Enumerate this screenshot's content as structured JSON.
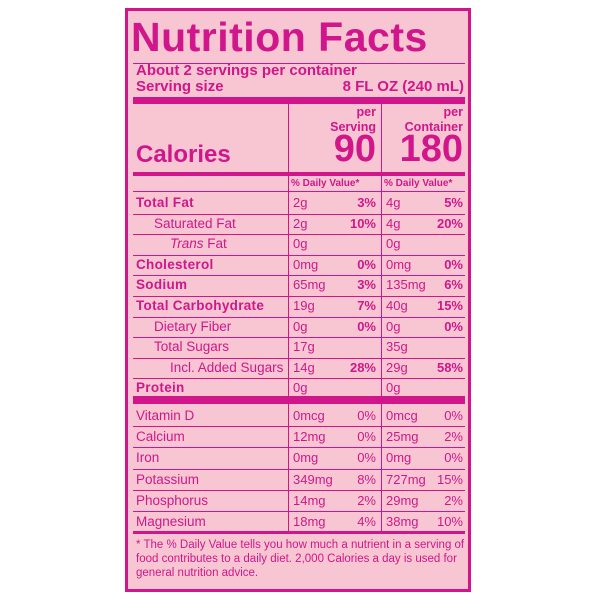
{
  "title": "Nutrition Facts",
  "servings_per_container": "About 2 servings per container",
  "serving_size_label": "Serving size",
  "serving_size_value": "8 FL OZ (240 mL)",
  "per_serving_header": [
    "per",
    "Serving"
  ],
  "per_container_header": [
    "per",
    "Container"
  ],
  "calories_label": "Calories",
  "calories_serving": "90",
  "calories_container": "180",
  "dv_header": "% Daily Value*",
  "nutrients": [
    {
      "label": "Total Fat",
      "style": "bold",
      "s_amt": "2g",
      "s_pct": "3%",
      "c_amt": "4g",
      "c_pct": "5%"
    },
    {
      "label": "Saturated Fat",
      "style": "indent",
      "s_amt": "2g",
      "s_pct": "10%",
      "c_amt": "4g",
      "c_pct": "20%"
    },
    {
      "label_italic": "Trans",
      "label": " Fat",
      "style": "indent2",
      "s_amt": "0g",
      "s_pct": "",
      "c_amt": "0g",
      "c_pct": ""
    },
    {
      "label": "Cholesterol",
      "style": "bold",
      "s_amt": "0mg",
      "s_pct": "0%",
      "c_amt": "0mg",
      "c_pct": "0%"
    },
    {
      "label": "Sodium",
      "style": "bold",
      "s_amt": "65mg",
      "s_pct": "3%",
      "c_amt": "135mg",
      "c_pct": "6%"
    },
    {
      "label": "Total Carbohydrate",
      "style": "bold",
      "s_amt": "19g",
      "s_pct": "7%",
      "c_amt": "40g",
      "c_pct": "15%"
    },
    {
      "label": "Dietary Fiber",
      "style": "indent",
      "s_amt": "0g",
      "s_pct": "0%",
      "c_amt": "0g",
      "c_pct": "0%"
    },
    {
      "label": "Total Sugars",
      "style": "indent",
      "s_amt": "17g",
      "s_pct": "",
      "c_amt": "35g",
      "c_pct": ""
    },
    {
      "label": "Incl. Added Sugars",
      "style": "indent2",
      "s_amt": "14g",
      "s_pct": "28%",
      "c_amt": "29g",
      "c_pct": "58%"
    },
    {
      "label": "Protein",
      "style": "bold",
      "s_amt": "0g",
      "s_pct": "",
      "c_amt": "0g",
      "c_pct": ""
    }
  ],
  "vitamins": [
    {
      "label": "Vitamin D",
      "s_amt": "0mcg",
      "s_pct": "0%",
      "c_amt": "0mcg",
      "c_pct": "0%"
    },
    {
      "label": "Calcium",
      "s_amt": "12mg",
      "s_pct": "0%",
      "c_amt": "25mg",
      "c_pct": "2%"
    },
    {
      "label": "Iron",
      "s_amt": "0mg",
      "s_pct": "0%",
      "c_amt": "0mg",
      "c_pct": "0%"
    },
    {
      "label": "Potassium",
      "s_amt": "349mg",
      "s_pct": "8%",
      "c_amt": "727mg",
      "c_pct": "15%"
    },
    {
      "label": "Phosphorus",
      "s_amt": "14mg",
      "s_pct": "2%",
      "c_amt": "29mg",
      "c_pct": "2%"
    },
    {
      "label": "Magnesium",
      "s_amt": "18mg",
      "s_pct": "4%",
      "c_amt": "38mg",
      "c_pct": "10%"
    }
  ],
  "footnote": "* The % Daily Value tells you how much a nutrient in a serving of food contributes to a daily diet. 2,000 Calories a day is used for general nutrition advice.",
  "colors": {
    "ink": "#d0168a",
    "background": "#f8c6d3"
  }
}
